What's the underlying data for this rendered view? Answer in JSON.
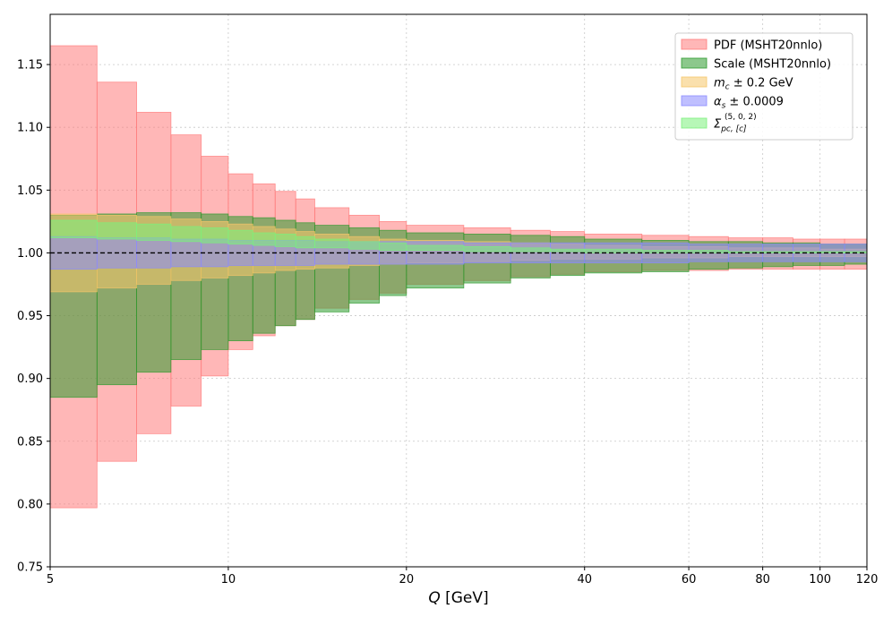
{
  "chart_data": {
    "type": "area",
    "xlabel": {
      "italic": "Q",
      "rest": " [GeV]"
    },
    "x_scale": "log",
    "xlim": [
      5,
      120
    ],
    "ylim": [
      0.75,
      1.19
    ],
    "x_ticks": [
      5,
      10,
      20,
      40,
      60,
      80,
      100,
      120
    ],
    "x_tick_labels": [
      "5",
      "10",
      "20",
      "40",
      "60",
      "80",
      "100",
      "120"
    ],
    "y_ticks": [
      0.75,
      0.8,
      0.85,
      0.9,
      0.95,
      1.0,
      1.05,
      1.1,
      1.15
    ],
    "y_tick_labels": [
      "0.75",
      "0.80",
      "0.85",
      "0.90",
      "0.95",
      "1.00",
      "1.05",
      "1.10",
      "1.15"
    ],
    "grid": true,
    "reference_line": {
      "y": 1.0,
      "style": "dashed"
    },
    "legend_position": "top-right",
    "bin_edges": [
      5,
      6,
      7,
      8,
      9,
      10,
      11,
      12,
      13,
      14,
      16,
      18,
      20,
      25,
      30,
      35,
      40,
      50,
      60,
      70,
      80,
      90,
      100,
      110,
      120
    ],
    "series": [
      {
        "name": "PDF (MSHT20nnlo)",
        "color": "#ff7b7b",
        "upper": [
          1.165,
          1.136,
          1.112,
          1.094,
          1.077,
          1.063,
          1.055,
          1.049,
          1.043,
          1.036,
          1.03,
          1.025,
          1.022,
          1.02,
          1.018,
          1.017,
          1.015,
          1.014,
          1.013,
          1.012,
          1.012,
          1.011,
          1.011,
          1.011
        ],
        "lower": [
          0.797,
          0.834,
          0.856,
          0.878,
          0.902,
          0.923,
          0.934,
          0.942,
          0.947,
          0.956,
          0.963,
          0.968,
          0.975,
          0.978,
          0.981,
          0.983,
          0.985,
          0.986,
          0.986,
          0.987,
          0.987,
          0.987,
          0.987,
          0.987
        ]
      },
      {
        "name": "Scale (MSHT20nnlo)",
        "color": "#2e9a2e",
        "upper": [
          1.03,
          1.031,
          1.032,
          1.032,
          1.031,
          1.029,
          1.028,
          1.026,
          1.024,
          1.022,
          1.02,
          1.018,
          1.016,
          1.015,
          1.014,
          1.013,
          1.011,
          1.01,
          1.009,
          1.009,
          1.008,
          1.008,
          1.007,
          1.007
        ],
        "lower": [
          0.885,
          0.895,
          0.905,
          0.915,
          0.923,
          0.93,
          0.936,
          0.942,
          0.947,
          0.953,
          0.96,
          0.966,
          0.972,
          0.976,
          0.98,
          0.982,
          0.984,
          0.985,
          0.987,
          0.988,
          0.989,
          0.99,
          0.99,
          0.991
        ]
      },
      {
        "name": "m_c ± 0.2 GeV",
        "label_parts": {
          "sym": "m",
          "sub": "c",
          "rest": " ± 0.2 GeV"
        },
        "color": "#f5c66a",
        "upper": [
          1.031,
          1.03,
          1.029,
          1.027,
          1.025,
          1.023,
          1.021,
          1.019,
          1.017,
          1.015,
          1.013,
          1.011,
          1.01,
          1.009,
          1.008,
          1.007,
          1.006,
          1.005,
          1.005,
          1.004,
          1.004,
          1.004,
          1.003,
          1.003
        ],
        "lower": [
          0.969,
          0.972,
          0.975,
          0.978,
          0.98,
          0.982,
          0.984,
          0.986,
          0.987,
          0.988,
          0.99,
          0.991,
          0.992,
          0.993,
          0.994,
          0.995,
          0.995,
          0.996,
          0.996,
          0.997,
          0.997,
          0.997,
          0.997,
          0.997
        ]
      },
      {
        "name": "α_s ± 0.0009",
        "label_parts": {
          "sym": "α",
          "sub": "s",
          "rest": " ± 0.0009"
        },
        "color": "#8a8aff",
        "upper": [
          1.013,
          1.012,
          1.012,
          1.011,
          1.011,
          1.01,
          1.01,
          1.01,
          1.01,
          1.009,
          1.009,
          1.009,
          1.009,
          1.008,
          1.008,
          1.008,
          1.008,
          1.008,
          1.007,
          1.007,
          1.007,
          1.007,
          1.007,
          1.007
        ],
        "lower": [
          0.987,
          0.988,
          0.988,
          0.989,
          0.989,
          0.99,
          0.99,
          0.99,
          0.99,
          0.991,
          0.991,
          0.991,
          0.991,
          0.992,
          0.992,
          0.992,
          0.992,
          0.992,
          0.993,
          0.993,
          0.993,
          0.993,
          0.993,
          0.993
        ]
      },
      {
        "name": "Σ_{pc,[c]}^{(5,0,2)}",
        "label_parts": {
          "sym": "Σ",
          "sub": "pc, [c]",
          "sup": "(5, 0, 2)"
        },
        "color": "#7cf07c",
        "upper": [
          1.026,
          1.024,
          1.023,
          1.021,
          1.02,
          1.018,
          1.016,
          1.015,
          1.013,
          1.011,
          1.009,
          1.008,
          1.006,
          1.005,
          1.004,
          1.003,
          1.003,
          1.002,
          1.002,
          1.001,
          1.001,
          1.001,
          1.001,
          1.001
        ],
        "lower": [
          1.012,
          1.011,
          1.01,
          1.009,
          1.008,
          1.007,
          1.006,
          1.005,
          1.004,
          1.004,
          1.003,
          1.002,
          1.002,
          1.001,
          1.001,
          1.001,
          1.0,
          1.0,
          1.0,
          1.0,
          1.0,
          1.0,
          1.0,
          1.0
        ]
      }
    ]
  }
}
